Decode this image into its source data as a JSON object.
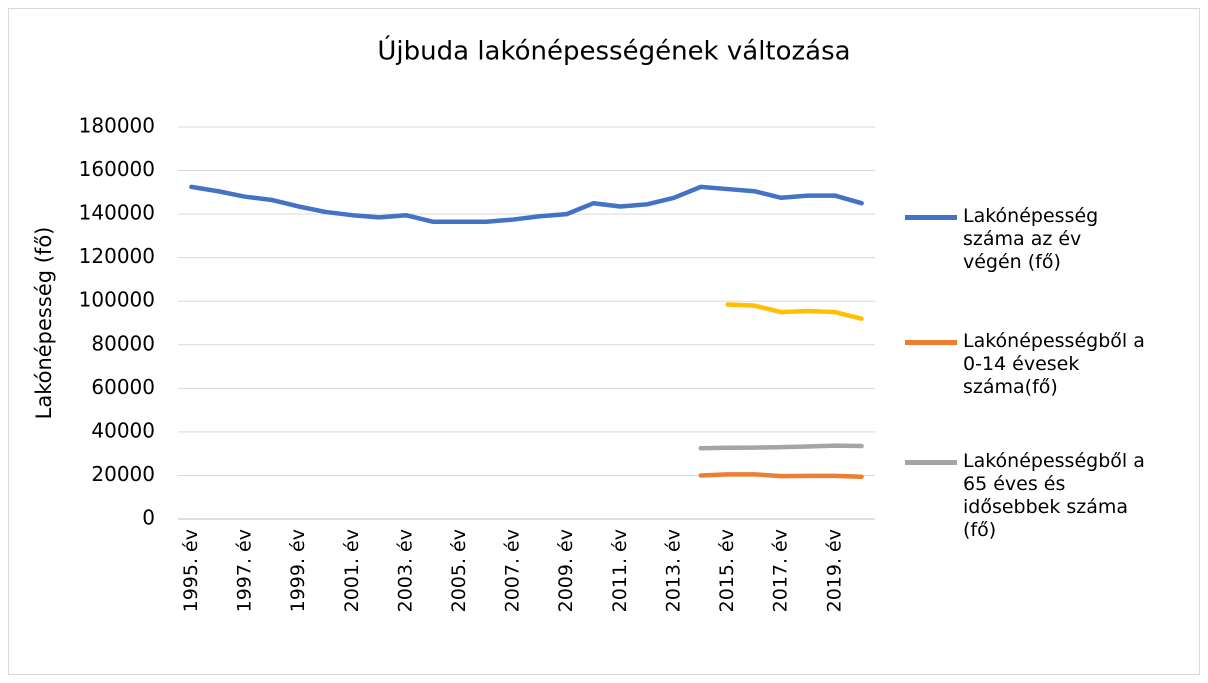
{
  "chart_data": {
    "type": "line",
    "title": "Újbuda lakónépességének változása",
    "y_label": "Lakónépesség (fő)",
    "categories": [
      "1995. év",
      null,
      "1997. év",
      null,
      "1999. év",
      null,
      "2001. év",
      null,
      "2003. év",
      null,
      "2005. év",
      null,
      "2007. év",
      null,
      "2009. év",
      null,
      "2011. év",
      null,
      "2013. év",
      null,
      "2015. év",
      null,
      "2017. év",
      null,
      "2019. év",
      null
    ],
    "series": [
      {
        "name": "Lakónépesség száma az év végén (fő)",
        "color": "#4472c4",
        "values": [
          152500,
          150500,
          148000,
          146500,
          143500,
          141000,
          139500,
          138500,
          139500,
          136500,
          136500,
          136500,
          137500,
          139000,
          140000,
          145000,
          143500,
          144500,
          147500,
          152500,
          151500,
          150500,
          147500,
          148500,
          148500,
          145000
        ]
      },
      {
        "color": "#ffc000",
        "values": [
          null,
          null,
          null,
          null,
          null,
          null,
          null,
          null,
          null,
          null,
          null,
          null,
          null,
          null,
          null,
          null,
          null,
          null,
          null,
          null,
          98500,
          98000,
          95000,
          95500,
          95000,
          92000
        ]
      },
      {
        "name": "Lakónépességből a 0-14 évesek száma(fő)",
        "color": "#ed7d31",
        "values": [
          null,
          null,
          null,
          null,
          null,
          null,
          null,
          null,
          null,
          null,
          null,
          null,
          null,
          null,
          null,
          null,
          null,
          null,
          null,
          20000,
          20500,
          20500,
          19700,
          19800,
          19800,
          19400
        ]
      },
      {
        "name": "Lakónépességből a 65 éves és idősebbek száma (fő)",
        "color": "#a5a5a5",
        "values": [
          null,
          null,
          null,
          null,
          null,
          null,
          null,
          null,
          null,
          null,
          null,
          null,
          null,
          null,
          null,
          null,
          null,
          null,
          null,
          32500,
          32700,
          32800,
          33000,
          33300,
          33700,
          33500
        ]
      }
    ],
    "ylim": [
      0,
      180000
    ],
    "yticks": [
      0,
      20000,
      40000,
      60000,
      80000,
      100000,
      120000,
      140000,
      160000,
      180000
    ],
    "grid": true
  }
}
